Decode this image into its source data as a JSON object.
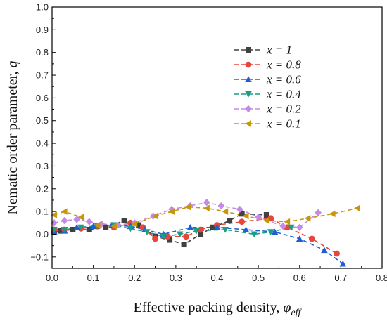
{
  "chart_data": {
    "type": "line",
    "title": "",
    "xlabel": "Effective packing density, ",
    "xlabel_symbol": "φ",
    "xlabel_sub": "eff",
    "ylabel": "Nematic order parameter, ",
    "ylabel_symbol": "q",
    "xlim": [
      0.0,
      0.8
    ],
    "ylim": [
      -0.15,
      1.0
    ],
    "xticks": [
      "0.0",
      "0.1",
      "0.2",
      "0.3",
      "0.4",
      "0.5",
      "0.6",
      "0.7",
      "0.8"
    ],
    "yticks": [
      "-0.1",
      "0.0",
      "0.1",
      "0.2",
      "0.3",
      "0.4",
      "0.5",
      "0.6",
      "0.7",
      "0.8",
      "0.9",
      "1.0"
    ],
    "legend_position": "upper-right",
    "grid": false,
    "series": [
      {
        "name": "x = 1",
        "color": "#404040",
        "marker": "square",
        "points": [
          [
            0.005,
            0.01
          ],
          [
            0.02,
            0.015
          ],
          [
            0.05,
            0.02
          ],
          [
            0.09,
            0.02
          ],
          [
            0.13,
            0.03
          ],
          [
            0.175,
            0.06
          ],
          [
            0.21,
            0.04
          ],
          [
            0.25,
            -0.01
          ],
          [
            0.285,
            -0.025
          ],
          [
            0.32,
            -0.045
          ],
          [
            0.36,
            0.0
          ],
          [
            0.39,
            0.03
          ],
          [
            0.43,
            0.06
          ],
          [
            0.46,
            0.09
          ],
          [
            0.52,
            0.085
          ]
        ]
      },
      {
        "name": "x = 0.8",
        "color": "#e8463a",
        "marker": "circle",
        "points": [
          [
            0.005,
            0.02
          ],
          [
            0.03,
            0.02
          ],
          [
            0.07,
            0.025
          ],
          [
            0.11,
            0.035
          ],
          [
            0.15,
            0.03
          ],
          [
            0.19,
            0.05
          ],
          [
            0.22,
            0.03
          ],
          [
            0.25,
            -0.02
          ],
          [
            0.28,
            -0.01
          ],
          [
            0.325,
            -0.01
          ],
          [
            0.36,
            0.02
          ],
          [
            0.4,
            0.04
          ],
          [
            0.46,
            0.055
          ],
          [
            0.53,
            0.07
          ],
          [
            0.57,
            0.03
          ],
          [
            0.63,
            -0.02
          ],
          [
            0.69,
            -0.085
          ]
        ]
      },
      {
        "name": "x = 0.6",
        "color": "#1f5fd6",
        "marker": "triangle-up",
        "points": [
          [
            0.005,
            0.01
          ],
          [
            0.03,
            0.015
          ],
          [
            0.06,
            0.03
          ],
          [
            0.1,
            0.035
          ],
          [
            0.145,
            0.04
          ],
          [
            0.19,
            0.035
          ],
          [
            0.225,
            0.02
          ],
          [
            0.27,
            0.0
          ],
          [
            0.335,
            0.03
          ],
          [
            0.4,
            0.03
          ],
          [
            0.47,
            0.02
          ],
          [
            0.54,
            0.01
          ],
          [
            0.6,
            -0.02
          ],
          [
            0.66,
            -0.07
          ],
          [
            0.705,
            -0.13
          ]
        ]
      },
      {
        "name": "x = 0.4",
        "color": "#1a9e86",
        "marker": "triangle-down",
        "points": [
          [
            0.005,
            0.02
          ],
          [
            0.03,
            0.02
          ],
          [
            0.07,
            0.03
          ],
          [
            0.11,
            0.035
          ],
          [
            0.15,
            0.04
          ],
          [
            0.19,
            0.025
          ],
          [
            0.23,
            0.01
          ],
          [
            0.27,
            -0.01
          ],
          [
            0.31,
            0.0
          ],
          [
            0.35,
            0.015
          ],
          [
            0.42,
            0.02
          ],
          [
            0.49,
            0.0
          ],
          [
            0.53,
            0.01
          ],
          [
            0.58,
            0.03
          ]
        ]
      },
      {
        "name": "x = 0.2",
        "color": "#c58ae8",
        "marker": "diamond",
        "points": [
          [
            0.005,
            0.05
          ],
          [
            0.03,
            0.06
          ],
          [
            0.06,
            0.065
          ],
          [
            0.09,
            0.055
          ],
          [
            0.12,
            0.045
          ],
          [
            0.16,
            0.04
          ],
          [
            0.2,
            0.05
          ],
          [
            0.245,
            0.08
          ],
          [
            0.29,
            0.11
          ],
          [
            0.335,
            0.125
          ],
          [
            0.375,
            0.14
          ],
          [
            0.41,
            0.125
          ],
          [
            0.455,
            0.11
          ],
          [
            0.5,
            0.075
          ],
          [
            0.56,
            0.035
          ],
          [
            0.6,
            0.03
          ],
          [
            0.645,
            0.095
          ]
        ]
      },
      {
        "name": "x = 0.1",
        "color": "#c8960a",
        "marker": "triangle-left",
        "points": [
          [
            0.005,
            0.085
          ],
          [
            0.03,
            0.1
          ],
          [
            0.07,
            0.075
          ],
          [
            0.11,
            0.04
          ],
          [
            0.15,
            0.035
          ],
          [
            0.2,
            0.045
          ],
          [
            0.25,
            0.08
          ],
          [
            0.29,
            0.1
          ],
          [
            0.33,
            0.12
          ],
          [
            0.375,
            0.115
          ],
          [
            0.42,
            0.1
          ],
          [
            0.47,
            0.08
          ],
          [
            0.52,
            0.06
          ],
          [
            0.57,
            0.055
          ],
          [
            0.62,
            0.07
          ],
          [
            0.68,
            0.09
          ],
          [
            0.74,
            0.115
          ]
        ]
      }
    ]
  }
}
